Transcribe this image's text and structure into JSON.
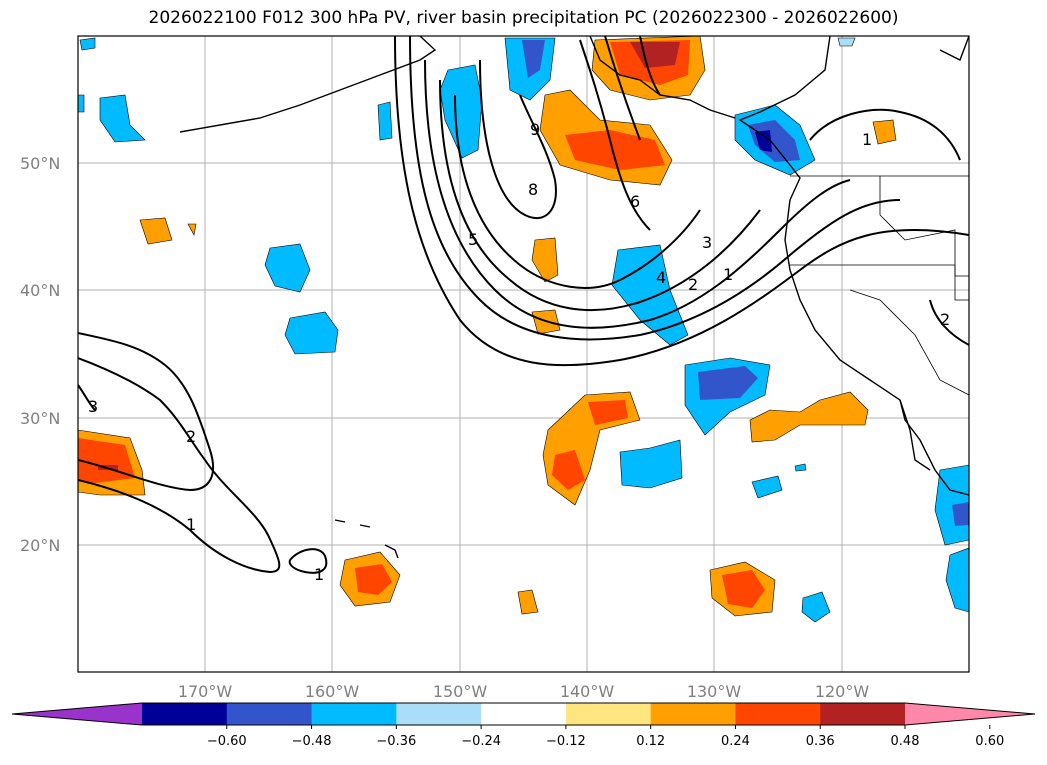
{
  "title": "2026022100 F012 300 hPa PV, river basin precipitation PC (2026022300 - 2026022600)",
  "map": {
    "projection": "equirectangular-like",
    "lon_range": [
      -180,
      -110
    ],
    "lat_range": [
      10,
      60
    ],
    "lat_ticks": [
      "50°N",
      "40°N",
      "30°N",
      "20°N"
    ],
    "lon_ticks": [
      "170°W",
      "160°W",
      "150°W",
      "140°W",
      "130°W",
      "120°W"
    ],
    "grid": true,
    "pv_contour_labels": [
      "9",
      "8",
      "6",
      "5",
      "4",
      "3",
      "2",
      "1",
      "3",
      "2",
      "1",
      "1",
      "1",
      "2"
    ]
  },
  "colorbar": {
    "labels": [
      "−0.60",
      "−0.48",
      "−0.36",
      "−0.24",
      "−0.12",
      "0.12",
      "0.24",
      "0.36",
      "0.48",
      "0.60"
    ],
    "colors": [
      "#9933cc",
      "#000099",
      "#3355cc",
      "#00bbff",
      "#aaddf8",
      "#ffffff",
      "#ffe680",
      "#ff9f00",
      "#ff4500",
      "#b22222",
      "#ff88aa"
    ],
    "extend": "both"
  }
}
